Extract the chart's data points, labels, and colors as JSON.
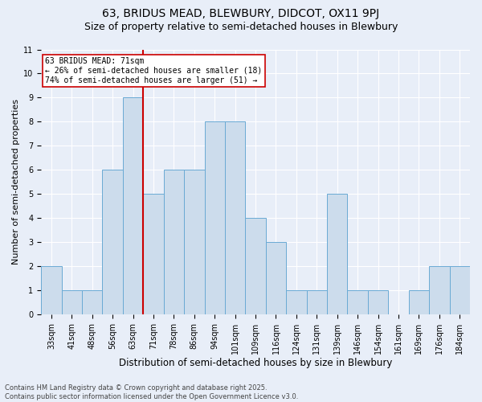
{
  "title1": "63, BRIDUS MEAD, BLEWBURY, DIDCOT, OX11 9PJ",
  "title2": "Size of property relative to semi-detached houses in Blewbury",
  "xlabel": "Distribution of semi-detached houses by size in Blewbury",
  "ylabel": "Number of semi-detached properties",
  "categories": [
    "33sqm",
    "41sqm",
    "48sqm",
    "56sqm",
    "63sqm",
    "71sqm",
    "78sqm",
    "86sqm",
    "94sqm",
    "101sqm",
    "109sqm",
    "116sqm",
    "124sqm",
    "131sqm",
    "139sqm",
    "146sqm",
    "154sqm",
    "161sqm",
    "169sqm",
    "176sqm",
    "184sqm"
  ],
  "values": [
    2,
    1,
    1,
    6,
    9,
    5,
    6,
    6,
    8,
    8,
    4,
    3,
    1,
    1,
    5,
    1,
    1,
    0,
    1,
    2,
    2
  ],
  "bar_color": "#ccdcec",
  "bar_edge_color": "#6aaad4",
  "vline_index": 4.5,
  "vline_color": "#cc0000",
  "annotation_text": "63 BRIDUS MEAD: 71sqm\n← 26% of semi-detached houses are smaller (18)\n74% of semi-detached houses are larger (51) →",
  "annotation_box_facecolor": "#ffffff",
  "annotation_box_edgecolor": "#cc0000",
  "ylim": [
    0,
    11
  ],
  "yticks": [
    0,
    1,
    2,
    3,
    4,
    5,
    6,
    7,
    8,
    9,
    10,
    11
  ],
  "footnote": "Contains HM Land Registry data © Crown copyright and database right 2025.\nContains public sector information licensed under the Open Government Licence v3.0.",
  "bg_color": "#e8eef8",
  "plot_bg_color": "#e8eef8",
  "title1_fontsize": 10,
  "title2_fontsize": 9,
  "xlabel_fontsize": 8.5,
  "ylabel_fontsize": 8,
  "tick_fontsize": 7,
  "annot_fontsize": 7,
  "footnote_fontsize": 6
}
